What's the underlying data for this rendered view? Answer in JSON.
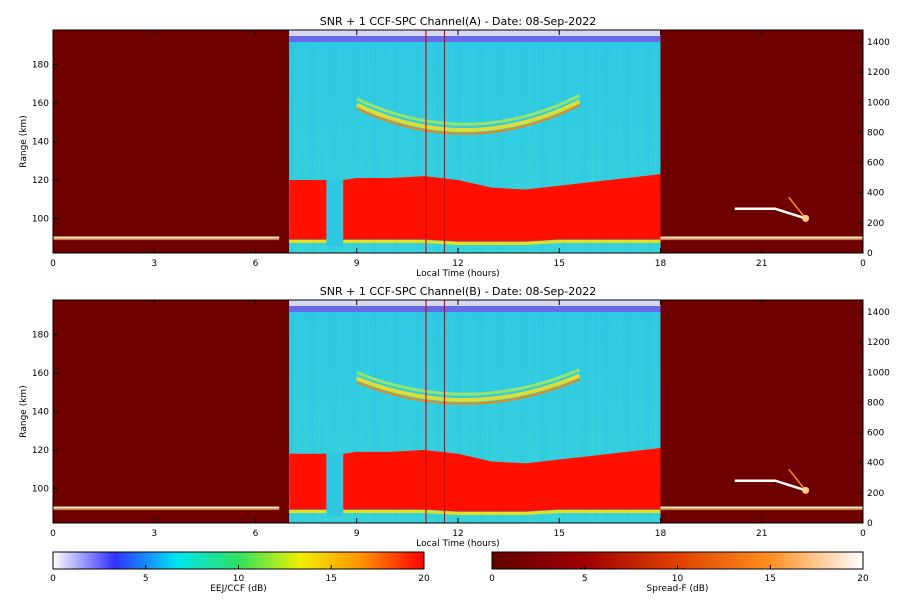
{
  "chart_data": [
    {
      "type": "heatmap",
      "title": "SNR + 1 CCF-SPC Channel(A) - Date: 08-Sep-2022",
      "xlabel": "Local Time (hours)",
      "ylabel": "Range (km)",
      "x_ticks": [
        "0",
        "3",
        "6",
        "9",
        "12",
        "15",
        "18",
        "21",
        "0"
      ],
      "y_ticks": [
        100,
        120,
        140,
        160,
        180
      ],
      "y_ticks_right": [
        0,
        200,
        400,
        600,
        800,
        1000,
        1200,
        1400
      ],
      "xlim": [
        0,
        24
      ],
      "ylim": [
        82,
        198
      ],
      "ylim_right": [
        0,
        1480
      ],
      "segments": [
        {
          "name": "night-spread-f",
          "x_range": [
            0,
            7
          ],
          "colormap": "Spread-F"
        },
        {
          "name": "day-eej-ccf",
          "x_range": [
            7,
            18
          ],
          "colormap": "EEJ/CCF"
        },
        {
          "name": "night-spread-f",
          "x_range": [
            18,
            24
          ],
          "colormap": "Spread-F"
        }
      ],
      "eej_band": {
        "x": [
          7,
          8,
          8.6,
          9,
          10,
          11,
          12,
          13,
          14,
          15,
          16,
          17,
          18
        ],
        "top": [
          120,
          120,
          120,
          121,
          121,
          122,
          120,
          116,
          115,
          117,
          119,
          121,
          123
        ],
        "bottom": [
          89,
          89,
          89,
          89,
          89,
          89,
          88,
          88,
          88,
          89,
          89,
          89,
          89
        ],
        "gap": [
          8.1,
          8.6
        ]
      },
      "valley_echo": {
        "x_center": 12.2,
        "range_min_km": 146,
        "range_max_km": 160
      },
      "annotations": [
        {
          "kind": "vertical-line",
          "x": 11.05
        },
        {
          "kind": "vertical-line",
          "x": 11.6
        }
      ],
      "layer_range_km": 90,
      "night_echo": {
        "x": 20.2,
        "range_km": 105,
        "x_end": 22.3,
        "range_end_km": 100
      }
    },
    {
      "type": "heatmap",
      "title": "SNR + 1 CCF-SPC Channel(B) - Date: 08-Sep-2022",
      "xlabel": "Local Time (hours)",
      "ylabel": "Range (km)",
      "x_ticks": [
        "0",
        "3",
        "6",
        "9",
        "12",
        "15",
        "18",
        "21",
        "0"
      ],
      "y_ticks": [
        100,
        120,
        140,
        160,
        180
      ],
      "y_ticks_right": [
        0,
        200,
        400,
        600,
        800,
        1000,
        1200,
        1400
      ],
      "xlim": [
        0,
        24
      ],
      "ylim": [
        82,
        198
      ],
      "ylim_right": [
        0,
        1480
      ],
      "segments": [
        {
          "name": "night-spread-f",
          "x_range": [
            0,
            7
          ],
          "colormap": "Spread-F"
        },
        {
          "name": "day-eej-ccf",
          "x_range": [
            7,
            18
          ],
          "colormap": "EEJ/CCF"
        },
        {
          "name": "night-spread-f",
          "x_range": [
            18,
            24
          ],
          "colormap": "Spread-F"
        }
      ],
      "eej_band": {
        "x": [
          7,
          8,
          8.6,
          9,
          10,
          11,
          12,
          13,
          14,
          15,
          16,
          17,
          18
        ],
        "top": [
          118,
          118,
          118,
          119,
          119,
          120,
          118,
          114,
          113,
          115,
          117,
          119,
          121
        ],
        "bottom": [
          89,
          89,
          89,
          89,
          89,
          89,
          88,
          88,
          88,
          89,
          89,
          89,
          89
        ],
        "gap": [
          8.1,
          8.6
        ]
      },
      "valley_echo": {
        "x_center": 12.2,
        "range_min_km": 146,
        "range_max_km": 158
      },
      "annotations": [
        {
          "kind": "vertical-line",
          "x": 11.05
        },
        {
          "kind": "vertical-line",
          "x": 11.6
        }
      ],
      "layer_range_km": 90,
      "night_echo": {
        "x": 20.2,
        "range_km": 104,
        "x_end": 22.3,
        "range_end_km": 99
      }
    }
  ],
  "colorbars": [
    {
      "label": "EEJ/CCF (dB)",
      "ticks": [
        "0",
        "5",
        "10",
        "15",
        "20"
      ],
      "range": [
        0,
        20
      ],
      "stops": [
        "#ffffff",
        "#3030ff",
        "#00e6f0",
        "#30e060",
        "#f0f000",
        "#ff9000",
        "#ff0000"
      ]
    },
    {
      "label": "Spread-F (dB)",
      "ticks": [
        "0",
        "5",
        "10",
        "15",
        "20"
      ],
      "range": [
        0,
        20
      ],
      "stops": [
        "#600000",
        "#a00000",
        "#e04000",
        "#ff9020",
        "#ffffff"
      ]
    }
  ],
  "colors": {
    "night_bg": "#6e0000",
    "day_bg": "#33cce0",
    "eej": "#ff1000",
    "topband": "#6a6ae8",
    "annotation_line": "#c01020"
  }
}
